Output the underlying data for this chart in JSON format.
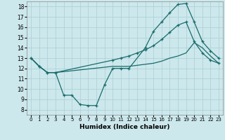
{
  "xlabel": "Humidex (Indice chaleur)",
  "xlim": [
    -0.5,
    23.5
  ],
  "ylim": [
    7.5,
    18.5
  ],
  "xticks": [
    0,
    1,
    2,
    3,
    4,
    5,
    6,
    7,
    8,
    9,
    10,
    11,
    12,
    13,
    14,
    15,
    16,
    17,
    18,
    19,
    20,
    21,
    22,
    23
  ],
  "yticks": [
    8,
    9,
    10,
    11,
    12,
    13,
    14,
    15,
    16,
    17,
    18
  ],
  "bg_color": "#cce8ec",
  "line_color": "#1a6b6b",
  "grid_color": "#aacdd4",
  "line1_x": [
    0,
    1,
    2,
    3,
    4,
    5,
    6,
    7,
    8,
    9,
    10,
    11,
    12,
    14,
    15,
    16,
    17,
    18,
    19,
    20,
    21,
    22,
    23
  ],
  "line1_y": [
    13,
    12.2,
    11.6,
    11.6,
    9.4,
    9.4,
    8.5,
    8.4,
    8.4,
    10.4,
    12.0,
    12.0,
    12.0,
    14.0,
    15.6,
    16.5,
    17.4,
    18.2,
    18.3,
    16.5,
    14.6,
    13.7,
    13.0
  ],
  "line2_x": [
    0,
    1,
    2,
    3,
    10,
    11,
    12,
    13,
    14,
    15,
    16,
    17,
    18,
    19,
    20,
    21,
    22,
    23
  ],
  "line2_y": [
    13,
    12.2,
    11.6,
    11.6,
    12.8,
    13.0,
    13.2,
    13.5,
    13.8,
    14.2,
    14.8,
    15.5,
    16.2,
    16.5,
    14.6,
    13.5,
    12.8,
    12.5
  ],
  "line3_x": [
    0,
    1,
    2,
    3,
    10,
    11,
    12,
    13,
    14,
    15,
    16,
    17,
    18,
    19,
    20,
    21,
    22,
    23
  ],
  "line3_y": [
    13,
    12.2,
    11.6,
    11.6,
    12.2,
    12.2,
    12.2,
    12.3,
    12.4,
    12.5,
    12.7,
    13.0,
    13.2,
    13.5,
    14.5,
    14.0,
    13.2,
    12.5
  ]
}
